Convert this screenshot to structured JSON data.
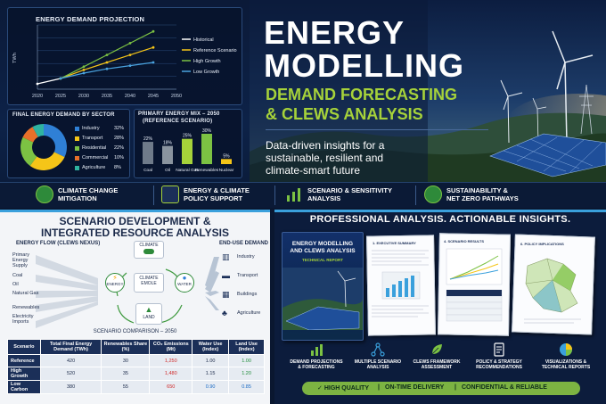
{
  "hero": {
    "title_line1": "ENERGY",
    "title_line2": "MODELLING",
    "subtitle_line1": "DEMAND FORECASTING",
    "subtitle_line2": "& CLEWS ANALYSIS",
    "desc_line1": "Data-driven insights for a",
    "desc_line2": "sustainable, resilient and",
    "desc_line3": "climate-smart future"
  },
  "projection": {
    "title": "ENERGY DEMAND PROJECTION",
    "y_unit": "TWh",
    "legend": [
      "Historical",
      "Reference Scenario",
      "High Growth",
      "Low Growth"
    ],
    "colors": [
      "#ffffff",
      "#f5c518",
      "#7cc243",
      "#4aa3df"
    ]
  },
  "chart_data": [
    {
      "type": "line",
      "title": "ENERGY DEMAND PROJECTION",
      "ylabel": "TWh",
      "x": [
        2020,
        2025,
        2030,
        2035,
        2040,
        2045,
        2050
      ],
      "series": [
        {
          "name": "Historical",
          "x": [
            2020,
            2025
          ],
          "values": [
            300,
            350
          ]
        },
        {
          "name": "Reference Scenario",
          "x": [
            2025,
            2030,
            2035,
            2040,
            2045
          ],
          "values": [
            350,
            430,
            500,
            570,
            640
          ]
        },
        {
          "name": "High Growth",
          "x": [
            2025,
            2030,
            2035,
            2040,
            2045
          ],
          "values": [
            350,
            460,
            570,
            680,
            790
          ]
        },
        {
          "name": "Low Growth",
          "x": [
            2025,
            2030,
            2035,
            2040,
            2045
          ],
          "values": [
            350,
            400,
            440,
            470,
            500
          ]
        }
      ],
      "xlim": [
        2020,
        2050
      ]
    },
    {
      "type": "pie",
      "title": "FINAL ENERGY DEMAND BY SECTOR",
      "categories": [
        "Industry",
        "Transport",
        "Residential",
        "Commercial",
        "Agriculture"
      ],
      "values": [
        32,
        28,
        22,
        10,
        8
      ],
      "value_labels": [
        "32%",
        "28%",
        "22%",
        "10%",
        "8%"
      ],
      "colors": [
        "#2f80d6",
        "#f5c518",
        "#7cc243",
        "#e8702a",
        "#2fb3a0"
      ]
    },
    {
      "type": "bar",
      "title": "PRIMARY ENERGY MIX – 2050 (REFERENCE SCENARIO)",
      "categories": [
        "Coal",
        "Oil",
        "Natural Gas",
        "Renewables",
        "Nuclear"
      ],
      "values": [
        22,
        18,
        25,
        30,
        5
      ],
      "value_labels": [
        "22%",
        "18%",
        "25%",
        "30%",
        "5%"
      ],
      "colors": [
        "#6f7b8a",
        "#8a949f",
        "#a6d23a",
        "#7cc243",
        "#f5c518"
      ]
    }
  ],
  "sector": {
    "title": "FINAL ENERGY DEMAND BY SECTOR",
    "items": [
      {
        "label": "Industry",
        "pct": "32%"
      },
      {
        "label": "Transport",
        "pct": "28%"
      },
      {
        "label": "Residential",
        "pct": "22%"
      },
      {
        "label": "Commercial",
        "pct": "10%"
      },
      {
        "label": "Agriculture",
        "pct": "8%"
      }
    ]
  },
  "mix": {
    "title_line1": "PRIMARY ENERGY MIX – 2050",
    "title_line2": "(REFERENCE SCENARIO)"
  },
  "features": [
    {
      "line1": "CLIMATE CHANGE",
      "line2": "MITIGATION",
      "icon": "leaf-icon"
    },
    {
      "line1": "ENERGY & CLIMATE",
      "line2": "POLICY SUPPORT",
      "icon": "document-icon"
    },
    {
      "line1": "SCENARIO & SENSITIVITY",
      "line2": "ANALYSIS",
      "icon": "bar-chart-icon"
    },
    {
      "line1": "SUSTAINABILITY &",
      "line2": "NET ZERO PATHWAYS",
      "icon": "globe-icon"
    }
  ],
  "scenario": {
    "title_line1": "SCENARIO DEVELOPMENT &",
    "title_line2": "INTEGRATED RESOURCE ANALYSIS",
    "flow_title": "ENERGY FLOW (CLEWS NEXUS)",
    "supply": [
      "Primary Energy Supply",
      "Coal",
      "Oil",
      "Natural Gas",
      "Renewables",
      "Electricity Imports"
    ],
    "nodes": {
      "climate": "CLIMATE",
      "energy": "ENERGY",
      "climate_smoke": "CLIMATE EMOLE",
      "water": "WATER",
      "land": "LAND"
    },
    "enduse_title": "END-USE DEMAND",
    "enduse": [
      "Industry",
      "Transport",
      "Buildings",
      "Agriculture"
    ],
    "comparison_title": "SCENARIO COMPARISON – 2050",
    "columns": [
      "Scenario",
      "Total Final Energy Demand (TWh)",
      "Renewables Share (%)",
      "CO₂ Emissions (Mt)",
      "Water Use (Index)",
      "Land Use (Index)"
    ],
    "rows": [
      [
        "Reference",
        "420",
        "30",
        "1,250",
        "1.00",
        "1.00"
      ],
      [
        "High Growth",
        "520",
        "35",
        "1,480",
        "1.15",
        "1.20"
      ],
      [
        "Low Carbon",
        "380",
        "55",
        "650",
        "0.90",
        "0.85"
      ]
    ]
  },
  "analysis": {
    "title": "PROFESSIONAL ANALYSIS. ACTIONABLE INSIGHTS.",
    "report_title_line1": "ENERGY MODELLING",
    "report_title_line2": "AND CLEWS ANALYSIS",
    "report_sub": "TECHNICAL REPORT",
    "docs": [
      "1. EXECUTIVE SUMMARY",
      "4. SCENARIO RESULTS",
      "6. POLICY IMPLICATIONS"
    ],
    "services": [
      {
        "line1": "DEMAND PROJECTIONS",
        "line2": "& FORECASTING"
      },
      {
        "line1": "MULTIPLE SCENARIO",
        "line2": "ANALYSIS"
      },
      {
        "line1": "CLEWS FRAMEWORK",
        "line2": "ASSESSMENT"
      },
      {
        "line1": "POLICY & STRATEGY",
        "line2": "RECOMMENDATIONS"
      },
      {
        "line1": "VISUALIZATIONS &",
        "line2": "TECHNICAL REPORTS"
      }
    ],
    "badges": [
      "HIGH QUALITY",
      "ON-TIME DELIVERY",
      "CONFIDENTIAL & RELIABLE"
    ]
  }
}
